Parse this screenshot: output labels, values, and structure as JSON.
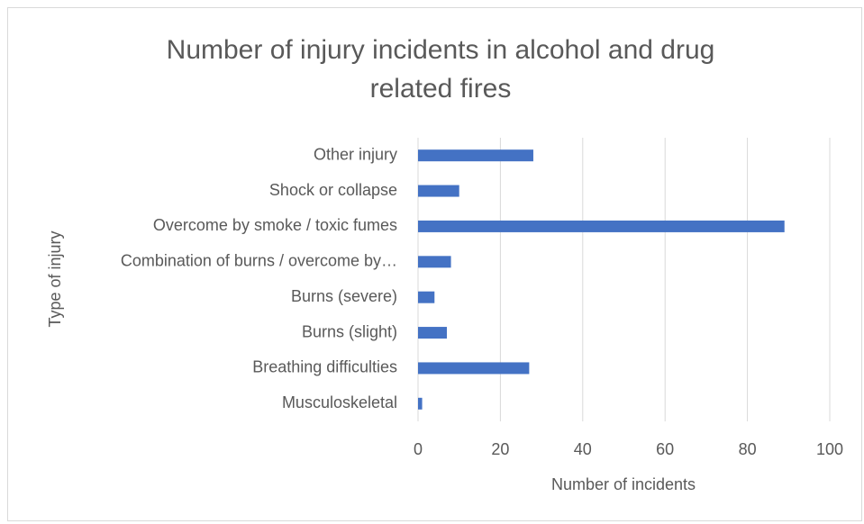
{
  "chart_data": {
    "type": "bar",
    "orientation": "horizontal",
    "title": "Number of injury incidents in alcohol and drug related fires",
    "x_label": "Number of incidents",
    "y_label": "Type of injury",
    "categories": [
      "Other injury",
      "Shock or collapse",
      "Overcome by smoke / toxic fumes",
      "Combination of burns / overcome by…",
      "Burns (severe)",
      "Burns (slight)",
      "Breathing difficulties",
      "Musculoskeletal"
    ],
    "values": [
      28,
      10,
      89,
      8,
      4,
      7,
      27,
      1
    ],
    "color": "#4472c4",
    "xlim": [
      0,
      100
    ],
    "xticks": [
      0,
      20,
      40,
      60,
      80,
      100
    ],
    "grid": true
  }
}
